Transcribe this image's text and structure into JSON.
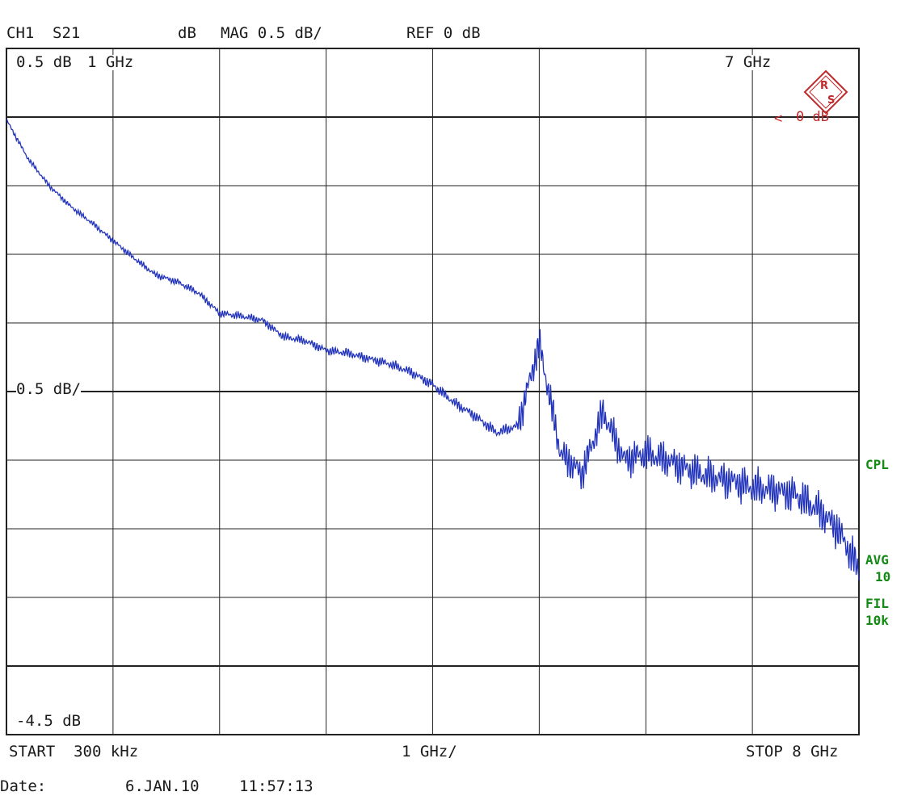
{
  "header": {
    "channel": "CH1",
    "parameter": "S21",
    "format": "dB",
    "scale": "MAG 0.5 dB/",
    "reference": "REF 0 dB"
  },
  "markers": {
    "scale_label_top": "0.5 dB",
    "marker_1": "1 GHz",
    "marker_7": "7 GHz",
    "mid_scale_label": "0.5 dB/",
    "bottom_label": "-4.5 dB",
    "ref_marker": "0 dB"
  },
  "footer": {
    "start": "START  300 kHz",
    "span": "1 GHz/",
    "stop": "STOP 8 GHz",
    "date_label": "Date:",
    "date_value": "6.JAN.10",
    "time_value": "11:57:13"
  },
  "side_labels": {
    "cpl": "CPL",
    "avg": "AVG",
    "avg_val": "10",
    "fil": "FIL",
    "fil_val": "10k"
  },
  "colors": {
    "trace": "#2233bb",
    "grid": "#222222",
    "logo": "#c0282a",
    "side_text": "#138a13"
  },
  "chart_data": {
    "type": "line",
    "title": "",
    "xlabel": "",
    "ylabel": "",
    "xlim": [
      0.0003,
      8
    ],
    "ylim": [
      -4.5,
      0.5
    ],
    "x_unit": "GHz",
    "y_unit": "dB",
    "series": [
      {
        "x": [
          0,
          0.2,
          0.4,
          0.6,
          0.8,
          1.0,
          1.2,
          1.4,
          1.6,
          1.8,
          2.0,
          2.2,
          2.4,
          2.6,
          2.8,
          3.0,
          3.2,
          3.4,
          3.6,
          3.8,
          4.0,
          4.2,
          4.4,
          4.6,
          4.8,
          5.0,
          5.2,
          5.4,
          5.6,
          5.8,
          6.0,
          6.2,
          6.4,
          6.6,
          6.8,
          7.0,
          7.2,
          7.4,
          7.6,
          7.8,
          8.0
        ],
        "y": [
          -0.02,
          -0.3,
          -0.5,
          -0.65,
          -0.77,
          -0.9,
          -1.03,
          -1.15,
          -1.2,
          -1.28,
          -1.43,
          -1.45,
          -1.48,
          -1.6,
          -1.63,
          -1.7,
          -1.72,
          -1.76,
          -1.8,
          -1.86,
          -1.95,
          -2.08,
          -2.18,
          -2.3,
          -2.25,
          -1.65,
          -2.45,
          -2.6,
          -2.15,
          -2.5,
          -2.45,
          -2.5,
          -2.57,
          -2.62,
          -2.65,
          -2.7,
          -2.72,
          -2.75,
          -2.85,
          -3.0,
          -3.3
        ]
      }
    ]
  }
}
